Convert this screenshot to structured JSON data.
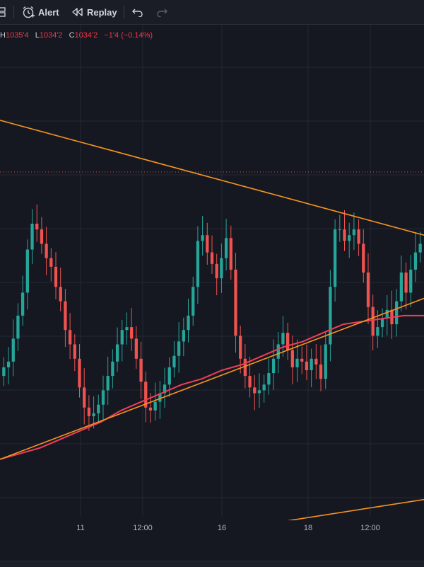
{
  "toolbar": {
    "alert_label": "Alert",
    "replay_label": "Replay"
  },
  "ohlc": {
    "h_key": "H",
    "h_val": "1035'4",
    "l_key": "L",
    "l_val": "1034'2",
    "c_key": "C",
    "c_val": "1034'2",
    "change": "−1'4 (−0.14%)"
  },
  "colors": {
    "up": "#26a69a",
    "down": "#ef5350",
    "ma": "#ef3e5a",
    "trendline": "#f7931e",
    "hline": "#d9534f",
    "grid": "#242833"
  },
  "chart_data": {
    "type": "candlestick",
    "x_ticks": [
      "11",
      "12:00",
      "16",
      "18",
      "12:00"
    ],
    "ylim": [
      1025,
      1042
    ],
    "candles_close": [
      1030.2,
      1030.4,
      1031.2,
      1032.0,
      1032.8,
      1034.3,
      1035.2,
      1035.0,
      1034.5,
      1034.0,
      1033.7,
      1033.0,
      1032.5,
      1031.5,
      1031.0,
      1030.5,
      1029.5,
      1028.8,
      1028.5,
      1028.6,
      1028.9,
      1029.4,
      1029.9,
      1030.4,
      1031.0,
      1031.5,
      1031.6,
      1031.2,
      1030.5,
      1029.7,
      1028.8,
      1028.7,
      1029.0,
      1029.3,
      1029.6,
      1030.2,
      1030.6,
      1031.1,
      1031.5,
      1032.0,
      1033.0,
      1034.6,
      1034.8,
      1034.2,
      1033.8,
      1033.3,
      1034.0,
      1034.7,
      1033.6,
      1031.3,
      1030.5,
      1029.9,
      1029.5,
      1029.3,
      1029.4,
      1029.6,
      1030.0,
      1030.5,
      1031.0,
      1031.4,
      1030.8,
      1030.2,
      1030.5,
      1030.4,
      1030.1,
      1030.5,
      1030.3,
      1029.8,
      1031.0,
      1033.0,
      1035.0,
      1035.0,
      1034.6,
      1034.8,
      1035.0,
      1034.5,
      1033.5,
      1032.3,
      1031.3,
      1031.6,
      1031.9,
      1032.2,
      1031.7,
      1032.5,
      1033.5,
      1032.8,
      1033.6,
      1034.2,
      1034.5
    ],
    "ma_values": [
      1027.0,
      1027.2,
      1027.4,
      1027.7,
      1028.0,
      1028.3,
      1028.7,
      1029.0,
      1029.3,
      1029.6,
      1029.8,
      1030.1,
      1030.3,
      1030.6,
      1030.9,
      1031.1,
      1031.4,
      1031.7,
      1031.8,
      1031.9,
      1032.0,
      1032.0
    ],
    "trendlines": [
      {
        "name": "upper",
        "x": [
          0,
          100
        ],
        "y": [
          1038.8,
          1034.8
        ]
      },
      {
        "name": "lower",
        "x": [
          0,
          100
        ],
        "y": [
          1027.0,
          1032.6
        ]
      },
      {
        "name": "bottom",
        "x": [
          0,
          100
        ],
        "y": [
          1023.3,
          1025.6
        ]
      }
    ],
    "hline": 1037.0
  }
}
